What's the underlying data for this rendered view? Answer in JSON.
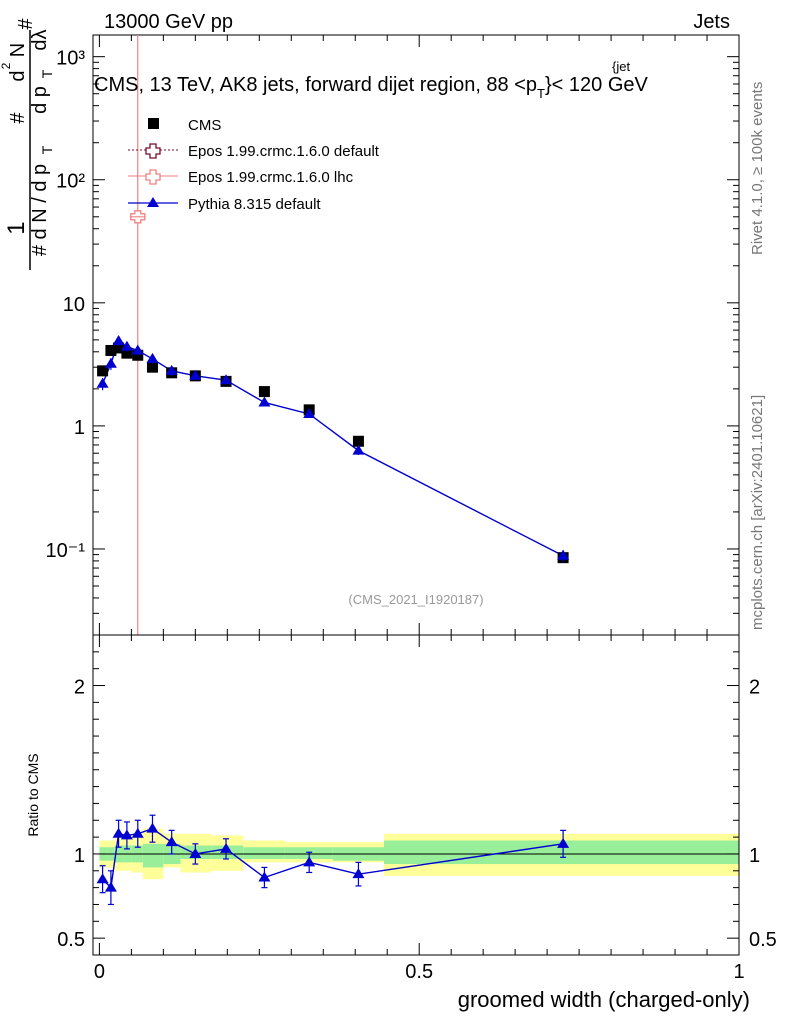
{
  "header": {
    "left": "13000 GeV pp",
    "right": "Jets"
  },
  "side_labels": {
    "rivet": "Rivet 4.1.0, ≥ 100k events",
    "source": "mcplots.cern.ch [arXiv:2401.10621]"
  },
  "chart_data": [
    {
      "type": "scatter",
      "panel": "main",
      "title_main": "CMS, 13 TeV, AK8 jets, forward dijet region, 88 <p",
      "title_sup": "{jet",
      "title_sub": "T",
      "title_tail": "}< 120 GeV",
      "ylabel_parts": [
        "1",
        "# d N / d p",
        "T",
        "#",
        "d p",
        "T",
        "d",
        "2",
        "N",
        "#",
        "dλ"
      ],
      "yscale": "log",
      "ylim": [
        0.02,
        1500
      ],
      "xlim": [
        -0.01,
        1.0
      ],
      "ytick_labels": [
        "10⁻¹",
        "1",
        "10",
        "10²",
        "10³"
      ],
      "ytick_values": [
        0.1,
        1,
        10,
        100,
        1000
      ],
      "analysis_label": "(CMS_2021_I1920187)",
      "legend": {
        "position": "top-left",
        "entries": [
          {
            "name": "CMS",
            "marker": "square",
            "color": "#000000"
          },
          {
            "name": "Epos 1.99.crmc.1.6.0 default",
            "marker": "open-cross",
            "color": "#7a0a2a"
          },
          {
            "name": "Epos 1.99.crmc.1.6.0 lhc",
            "marker": "open-cross",
            "color": "#f08080"
          },
          {
            "name": "Pythia 8.315 default",
            "marker": "triangle",
            "color": "#0000d0"
          }
        ]
      },
      "series": [
        {
          "name": "CMS",
          "color": "#000000",
          "x": [
            0.005,
            0.018,
            0.03,
            0.043,
            0.06,
            0.083,
            0.113,
            0.15,
            0.198,
            0.258,
            0.328,
            0.405,
            0.725
          ],
          "y": [
            2.8,
            4.1,
            4.3,
            3.9,
            3.75,
            3.0,
            2.7,
            2.55,
            2.3,
            1.9,
            1.35,
            0.75,
            0.085
          ],
          "err": [
            0.2,
            0.3,
            0.3,
            0.3,
            0.3,
            0.2,
            0.15,
            0.12,
            0.1,
            0.1,
            0.08,
            0.05,
            0.008
          ]
        },
        {
          "name": "Epos 1.99.crmc.1.6.0 lhc",
          "color": "#f08080",
          "x": [
            0.06
          ],
          "y": [
            50
          ],
          "err_lo": [
            49.999
          ],
          "err_hi": [
            2000
          ]
        },
        {
          "name": "Pythia 8.315 default",
          "color": "#0000d0",
          "x": [
            0.005,
            0.018,
            0.03,
            0.043,
            0.06,
            0.083,
            0.113,
            0.15,
            0.198,
            0.258,
            0.328,
            0.405,
            0.725
          ],
          "y": [
            2.2,
            3.2,
            4.9,
            4.4,
            4.1,
            3.5,
            2.8,
            2.55,
            2.35,
            1.55,
            1.25,
            0.63,
            0.088
          ],
          "err": [
            0.25,
            0.35,
            0.45,
            0.4,
            0.35,
            0.3,
            0.25,
            0.15,
            0.12,
            0.1,
            0.08,
            0.05,
            0.01
          ]
        }
      ]
    },
    {
      "type": "line",
      "panel": "ratio",
      "ylabel": "Ratio to CMS",
      "ylim": [
        0.4,
        2.3
      ],
      "xlim": [
        -0.01,
        1.0
      ],
      "ytick_values": [
        0.5,
        1,
        2
      ],
      "ytick_labels": [
        "0.5",
        "1",
        "2"
      ],
      "xtick_values": [
        0,
        0.5,
        1
      ],
      "xtick_labels": [
        "0",
        "0.5",
        "1"
      ],
      "xlabel": "groomed width (charged-only)",
      "bands": {
        "bins": [
          0.0,
          0.012,
          0.024,
          0.037,
          0.05,
          0.068,
          0.1,
          0.127,
          0.175,
          0.225,
          0.29,
          0.365,
          0.445,
          1.0
        ],
        "inner_lo": [
          0.96,
          0.96,
          0.95,
          0.95,
          0.95,
          0.92,
          0.94,
          0.97,
          0.97,
          0.97,
          0.97,
          0.96,
          0.94
        ],
        "inner_hi": [
          1.04,
          1.04,
          1.05,
          1.05,
          1.05,
          1.06,
          1.06,
          1.05,
          1.05,
          1.04,
          1.04,
          1.04,
          1.08
        ],
        "outer_lo": [
          0.92,
          0.92,
          0.9,
          0.9,
          0.89,
          0.85,
          0.92,
          0.89,
          0.9,
          0.95,
          0.95,
          0.95,
          0.87
        ],
        "outer_hi": [
          1.08,
          1.08,
          1.1,
          1.1,
          1.1,
          1.15,
          1.12,
          1.12,
          1.11,
          1.08,
          1.07,
          1.07,
          1.12
        ],
        "inner_color": "#99ee99",
        "outer_color": "#ffff99"
      },
      "series": [
        {
          "name": "Pythia 8.315 default",
          "color": "#0000d0",
          "x": [
            0.005,
            0.018,
            0.03,
            0.043,
            0.06,
            0.083,
            0.113,
            0.15,
            0.198,
            0.258,
            0.328,
            0.405,
            0.725
          ],
          "y": [
            0.85,
            0.8,
            1.12,
            1.11,
            1.12,
            1.15,
            1.07,
            1.0,
            1.03,
            0.86,
            0.95,
            0.88,
            1.06
          ],
          "err": [
            0.08,
            0.1,
            0.08,
            0.08,
            0.08,
            0.08,
            0.07,
            0.06,
            0.06,
            0.06,
            0.06,
            0.07,
            0.08
          ]
        }
      ]
    }
  ]
}
